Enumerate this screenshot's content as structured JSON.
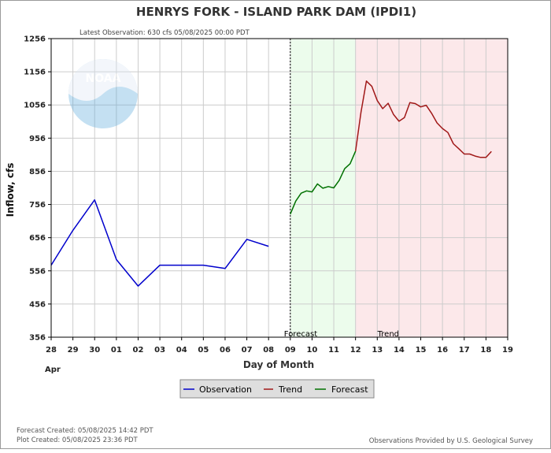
{
  "header": {
    "title": "HENRYS FORK - ISLAND PARK DAM  (IPDI1)",
    "latest_observation": "Latest Observation: 630 cfs 05/08/2025 00:00 PDT"
  },
  "regions": {
    "forecast_label": "Forecast",
    "trend_label": "Trend"
  },
  "legend": {
    "observation": "Observation",
    "trend": "Trend",
    "forecast": "Forecast"
  },
  "footer": {
    "forecast_created": "Forecast Created: 05/08/2025 14:42 PDT",
    "plot_created": "Plot Created: 05/08/2025 23:36 PDT",
    "provider": "Observations Provided by U.S. Geological Survey"
  },
  "logo": {
    "text": "NOAA"
  },
  "colors": {
    "observation": "#0000cc",
    "trend": "#a01818",
    "forecast": "#007000",
    "forecast_band": "#ecfcec",
    "trend_band": "#fce8ea",
    "grid": "#cccccc"
  },
  "chart_data": {
    "type": "line",
    "xlabel": "Day of Month",
    "ylabel": "Inflow, cfs",
    "x_month_label": "Apr",
    "x_ticks": [
      {
        "label": "28",
        "d": 28
      },
      {
        "label": "29",
        "d": 29
      },
      {
        "label": "30",
        "d": 30
      },
      {
        "label": "01",
        "d": 31
      },
      {
        "label": "02",
        "d": 32
      },
      {
        "label": "03",
        "d": 33
      },
      {
        "label": "04",
        "d": 34
      },
      {
        "label": "05",
        "d": 35
      },
      {
        "label": "06",
        "d": 36
      },
      {
        "label": "07",
        "d": 37
      },
      {
        "label": "08",
        "d": 38
      },
      {
        "label": "09",
        "d": 39
      },
      {
        "label": "10",
        "d": 40
      },
      {
        "label": "11",
        "d": 41
      },
      {
        "label": "12",
        "d": 42
      },
      {
        "label": "13",
        "d": 43
      },
      {
        "label": "14",
        "d": 44
      },
      {
        "label": "15",
        "d": 45
      },
      {
        "label": "16",
        "d": 46
      },
      {
        "label": "17",
        "d": 47
      },
      {
        "label": "18",
        "d": 48
      },
      {
        "label": "19",
        "d": 49
      }
    ],
    "xlim": [
      28,
      49
    ],
    "ylim": [
      356,
      1256
    ],
    "y_ticks": [
      356,
      456,
      556,
      656,
      756,
      856,
      956,
      1056,
      1156,
      1256
    ],
    "grid": true,
    "forecast_start": 39,
    "trend_start": 42,
    "series": [
      {
        "name": "Observation",
        "points": [
          [
            28,
            573
          ],
          [
            29,
            678
          ],
          [
            30,
            770
          ],
          [
            31,
            590
          ],
          [
            32,
            510
          ],
          [
            33,
            573
          ],
          [
            34,
            573
          ],
          [
            35,
            573
          ],
          [
            36,
            563
          ],
          [
            37,
            651
          ],
          [
            38,
            630
          ]
        ]
      },
      {
        "name": "Forecast",
        "points": [
          [
            39,
            727
          ],
          [
            39.25,
            766
          ],
          [
            39.5,
            790
          ],
          [
            39.75,
            797
          ],
          [
            40,
            794
          ],
          [
            40.25,
            818
          ],
          [
            40.5,
            805
          ],
          [
            40.75,
            810
          ],
          [
            41,
            806
          ],
          [
            41.25,
            829
          ],
          [
            41.5,
            864
          ],
          [
            41.75,
            879
          ],
          [
            42,
            917
          ]
        ]
      },
      {
        "name": "Trend",
        "points": [
          [
            42,
            917
          ],
          [
            42.25,
            1034
          ],
          [
            42.5,
            1128
          ],
          [
            42.75,
            1112
          ],
          [
            43,
            1069
          ],
          [
            43.25,
            1045
          ],
          [
            43.5,
            1061
          ],
          [
            43.75,
            1027
          ],
          [
            44,
            1007
          ],
          [
            44.25,
            1018
          ],
          [
            44.5,
            1063
          ],
          [
            44.75,
            1060
          ],
          [
            45,
            1050
          ],
          [
            45.25,
            1055
          ],
          [
            45.5,
            1031
          ],
          [
            45.75,
            1002
          ],
          [
            46,
            985
          ],
          [
            46.25,
            973
          ],
          [
            46.5,
            939
          ],
          [
            46.75,
            924
          ],
          [
            47,
            908
          ],
          [
            47.25,
            908
          ],
          [
            47.5,
            902
          ],
          [
            47.75,
            898
          ],
          [
            48,
            898
          ],
          [
            48.25,
            916
          ]
        ]
      }
    ]
  }
}
